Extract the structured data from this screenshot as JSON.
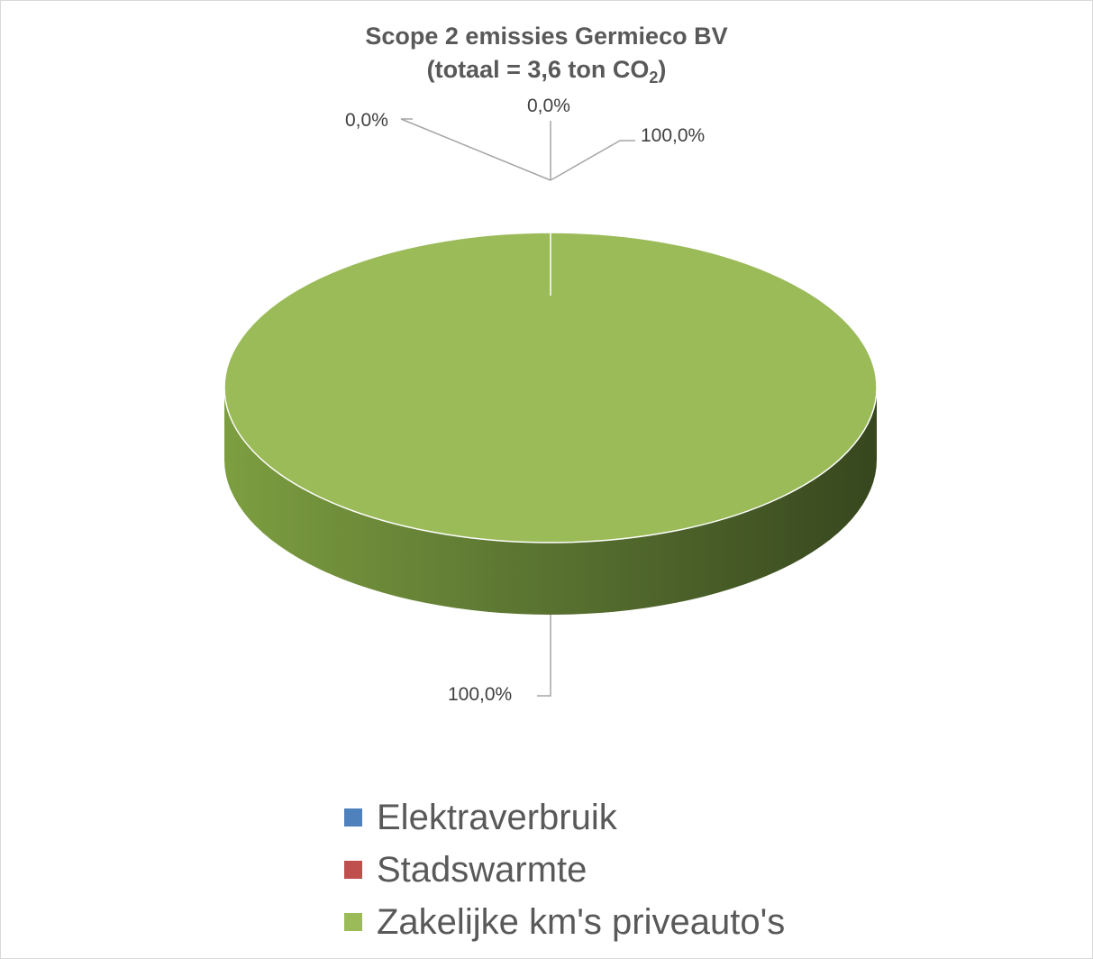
{
  "chart_data": {
    "type": "pie",
    "title_line1": "Scope 2 emissies Germieco BV",
    "title_line2_prefix": "(totaal = 3,6 ton CO",
    "title_line2_sub": "2",
    "title_line2_suffix": ")",
    "slices": [
      {
        "name": "Elektraverbruik",
        "value": 0.0,
        "label": "0,0%",
        "color": "#4f81bd"
      },
      {
        "name": "Stadswarmte",
        "value": 0.0,
        "label": "0,0%",
        "color": "#c0504d"
      },
      {
        "name": "Zakelijke km's priveauto's",
        "value": 100.0,
        "label": "100,0%",
        "color": "#9bbb59"
      }
    ],
    "legend_position": "bottom",
    "style": "3d"
  }
}
